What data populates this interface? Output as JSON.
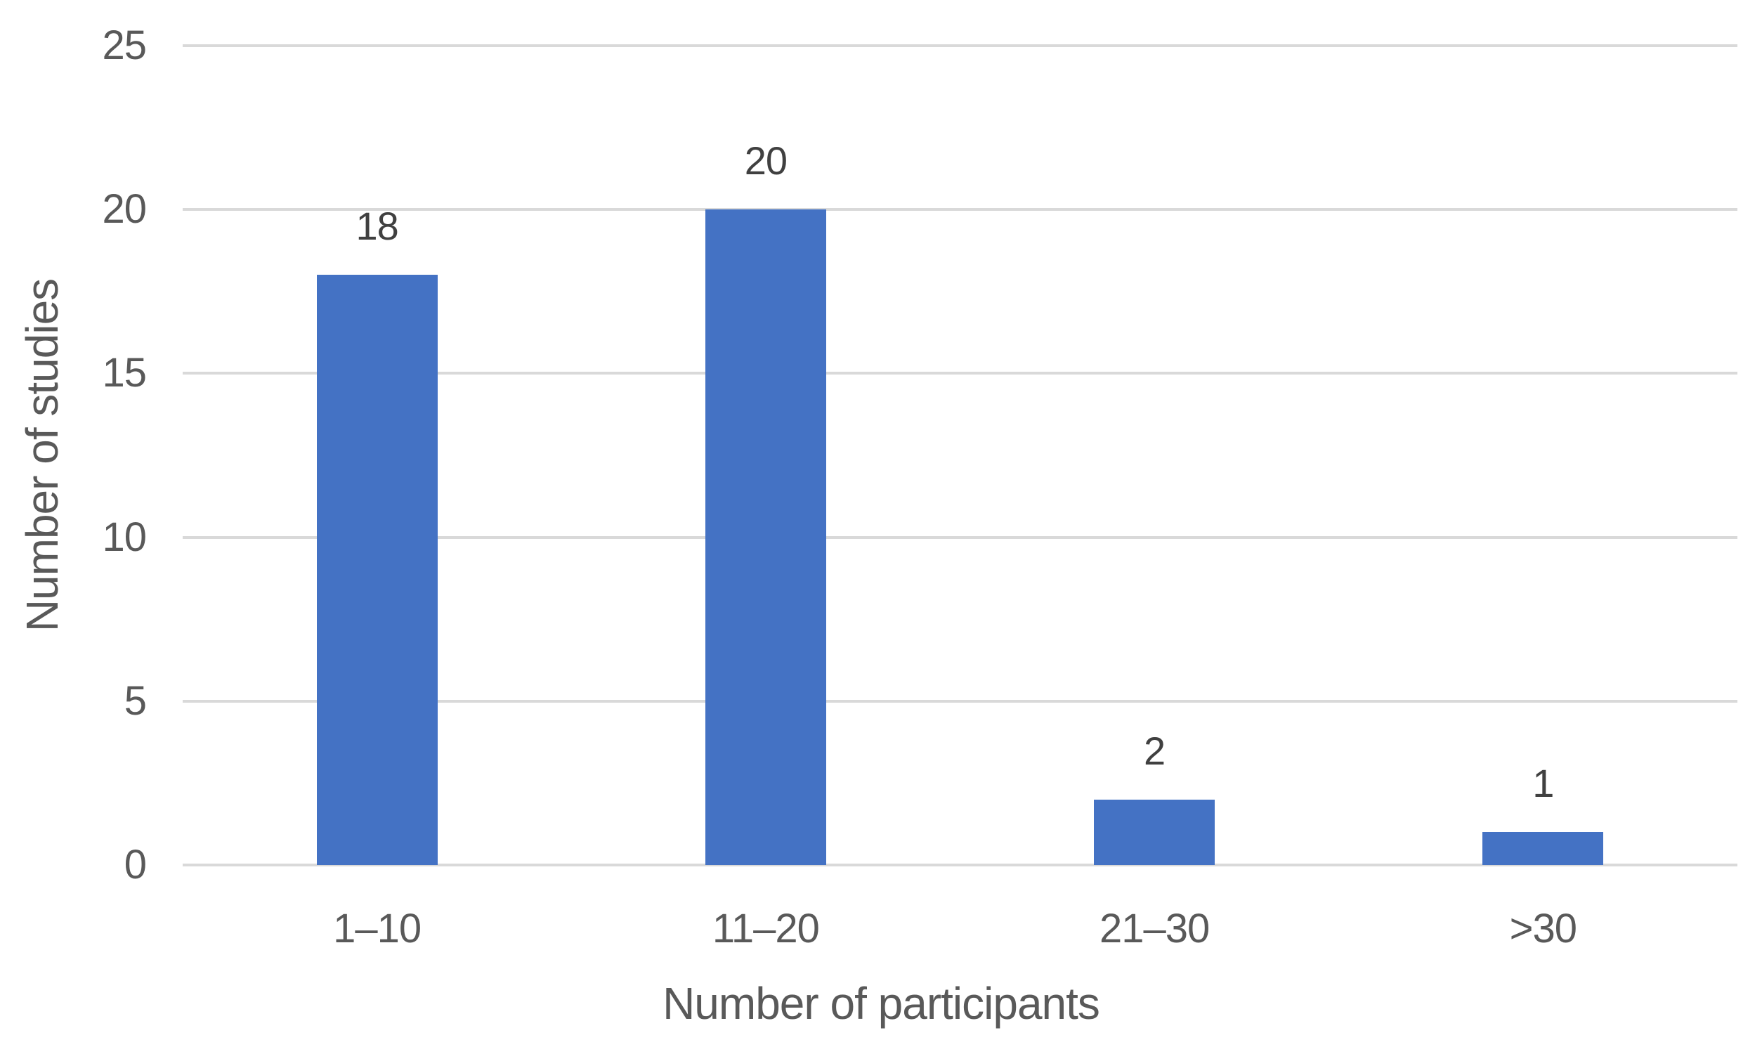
{
  "chart_data": {
    "type": "bar",
    "categories": [
      "1–10",
      "11–20",
      "21–30",
      ">30"
    ],
    "values": [
      18,
      20,
      2,
      1
    ],
    "data_labels": [
      "18",
      "20",
      "2",
      "1"
    ],
    "xlabel": "Number of participants",
    "ylabel": "Number of studies",
    "ylim": [
      0,
      25
    ],
    "yticks": [
      0,
      5,
      10,
      15,
      20,
      25
    ],
    "grid": true,
    "legend": false,
    "bar_color": "#4472C4",
    "gridline_color": "#D9D9D9",
    "tick_text_color": "#595959",
    "axis_title_color": "#595959",
    "data_label_color": "#404040"
  }
}
